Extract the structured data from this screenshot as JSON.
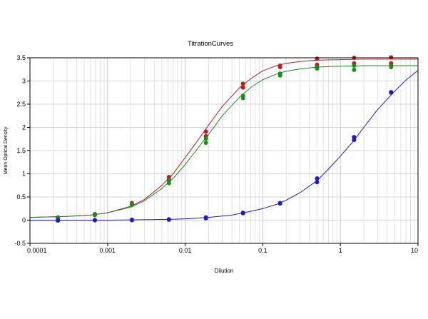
{
  "chart_data": {
    "type": "scatter",
    "title": "TitrationCurves",
    "xlabel": "Dilution",
    "ylabel": "Mean Optical Density",
    "x_scale": "log",
    "xlim": [
      0.0001,
      10
    ],
    "ylim": [
      -0.5,
      3.5
    ],
    "grid": true,
    "x_tick_labels": [
      "0.0001",
      "0.001",
      "0.01",
      "0.1",
      "1",
      "10"
    ],
    "y_tick_labels": [
      "-0.5",
      "0",
      "0.5",
      "1",
      "1.5",
      "2",
      "2.5",
      "3",
      "3.5"
    ],
    "series": [
      {
        "color": "#b22222",
        "points": [
          {
            "x": 0.000229,
            "y": 0.06
          },
          {
            "x": 0.000229,
            "y": 0.04
          },
          {
            "x": 0.000686,
            "y": 0.13
          },
          {
            "x": 0.000686,
            "y": 0.11
          },
          {
            "x": 0.00206,
            "y": 0.37
          },
          {
            "x": 0.00206,
            "y": 0.34
          },
          {
            "x": 0.00617,
            "y": 0.93
          },
          {
            "x": 0.00617,
            "y": 0.88
          },
          {
            "x": 0.0185,
            "y": 1.91
          },
          {
            "x": 0.0185,
            "y": 1.81
          },
          {
            "x": 0.0556,
            "y": 2.94
          },
          {
            "x": 0.0556,
            "y": 2.86
          },
          {
            "x": 0.167,
            "y": 3.33
          },
          {
            "x": 0.167,
            "y": 3.3
          },
          {
            "x": 0.5,
            "y": 3.48
          },
          {
            "x": 0.5,
            "y": 3.35
          },
          {
            "x": 1.5,
            "y": 3.5
          },
          {
            "x": 1.5,
            "y": 3.38
          },
          {
            "x": 4.5,
            "y": 3.51
          },
          {
            "x": 4.5,
            "y": 3.38
          }
        ],
        "curve": [
          {
            "x": 0.0001,
            "y": 0.06
          },
          {
            "x": 0.0003,
            "y": 0.08
          },
          {
            "x": 0.0006,
            "y": 0.11
          },
          {
            "x": 0.001,
            "y": 0.16
          },
          {
            "x": 0.002,
            "y": 0.3
          },
          {
            "x": 0.003,
            "y": 0.45
          },
          {
            "x": 0.005,
            "y": 0.75
          },
          {
            "x": 0.007,
            "y": 1.0
          },
          {
            "x": 0.01,
            "y": 1.35
          },
          {
            "x": 0.015,
            "y": 1.75
          },
          {
            "x": 0.02,
            "y": 2.05
          },
          {
            "x": 0.03,
            "y": 2.45
          },
          {
            "x": 0.05,
            "y": 2.85
          },
          {
            "x": 0.07,
            "y": 3.05
          },
          {
            "x": 0.1,
            "y": 3.22
          },
          {
            "x": 0.15,
            "y": 3.33
          },
          {
            "x": 0.2,
            "y": 3.38
          },
          {
            "x": 0.3,
            "y": 3.42
          },
          {
            "x": 0.5,
            "y": 3.45
          },
          {
            "x": 1,
            "y": 3.46
          },
          {
            "x": 2,
            "y": 3.47
          },
          {
            "x": 5,
            "y": 3.47
          },
          {
            "x": 10,
            "y": 3.47
          }
        ]
      },
      {
        "color": "#1e8a1e",
        "points": [
          {
            "x": 0.000229,
            "y": 0.06
          },
          {
            "x": 0.000229,
            "y": 0.04
          },
          {
            "x": 0.000686,
            "y": 0.12
          },
          {
            "x": 0.000686,
            "y": 0.11
          },
          {
            "x": 0.00206,
            "y": 0.35
          },
          {
            "x": 0.00206,
            "y": 0.33
          },
          {
            "x": 0.00617,
            "y": 0.85
          },
          {
            "x": 0.00617,
            "y": 0.8
          },
          {
            "x": 0.0185,
            "y": 1.76
          },
          {
            "x": 0.0185,
            "y": 1.67
          },
          {
            "x": 0.0556,
            "y": 2.68
          },
          {
            "x": 0.0556,
            "y": 2.63
          },
          {
            "x": 0.167,
            "y": 3.16
          },
          {
            "x": 0.167,
            "y": 3.12
          },
          {
            "x": 0.5,
            "y": 3.3
          },
          {
            "x": 0.5,
            "y": 3.27
          },
          {
            "x": 1.5,
            "y": 3.33
          },
          {
            "x": 1.5,
            "y": 3.24
          },
          {
            "x": 4.5,
            "y": 3.33
          },
          {
            "x": 4.5,
            "y": 3.3
          }
        ],
        "curve": [
          {
            "x": 0.0001,
            "y": 0.06
          },
          {
            "x": 0.0003,
            "y": 0.08
          },
          {
            "x": 0.0006,
            "y": 0.11
          },
          {
            "x": 0.001,
            "y": 0.16
          },
          {
            "x": 0.002,
            "y": 0.28
          },
          {
            "x": 0.003,
            "y": 0.42
          },
          {
            "x": 0.005,
            "y": 0.68
          },
          {
            "x": 0.007,
            "y": 0.9
          },
          {
            "x": 0.01,
            "y": 1.2
          },
          {
            "x": 0.015,
            "y": 1.58
          },
          {
            "x": 0.02,
            "y": 1.85
          },
          {
            "x": 0.03,
            "y": 2.25
          },
          {
            "x": 0.05,
            "y": 2.65
          },
          {
            "x": 0.07,
            "y": 2.86
          },
          {
            "x": 0.1,
            "y": 3.03
          },
          {
            "x": 0.15,
            "y": 3.15
          },
          {
            "x": 0.2,
            "y": 3.21
          },
          {
            "x": 0.3,
            "y": 3.26
          },
          {
            "x": 0.5,
            "y": 3.3
          },
          {
            "x": 1,
            "y": 3.32
          },
          {
            "x": 2,
            "y": 3.33
          },
          {
            "x": 5,
            "y": 3.33
          },
          {
            "x": 10,
            "y": 3.33
          }
        ]
      },
      {
        "color": "#1a1acc",
        "points": [
          {
            "x": 0.000229,
            "y": 0.0
          },
          {
            "x": 0.000229,
            "y": -0.01
          },
          {
            "x": 0.000686,
            "y": 0.0
          },
          {
            "x": 0.000686,
            "y": 0.0
          },
          {
            "x": 0.00206,
            "y": 0.01
          },
          {
            "x": 0.00206,
            "y": 0.0
          },
          {
            "x": 0.00617,
            "y": 0.02
          },
          {
            "x": 0.00617,
            "y": 0.01
          },
          {
            "x": 0.0185,
            "y": 0.06
          },
          {
            "x": 0.0185,
            "y": 0.04
          },
          {
            "x": 0.0556,
            "y": 0.16
          },
          {
            "x": 0.0556,
            "y": 0.15
          },
          {
            "x": 0.167,
            "y": 0.37
          },
          {
            "x": 0.167,
            "y": 0.36
          },
          {
            "x": 0.5,
            "y": 0.9
          },
          {
            "x": 0.5,
            "y": 0.82
          },
          {
            "x": 1.5,
            "y": 1.79
          },
          {
            "x": 1.5,
            "y": 1.73
          },
          {
            "x": 4.5,
            "y": 2.76
          },
          {
            "x": 4.5,
            "y": 2.75
          }
        ],
        "curve": [
          {
            "x": 0.0001,
            "y": 0.0
          },
          {
            "x": 0.001,
            "y": 0.0
          },
          {
            "x": 0.003,
            "y": 0.01
          },
          {
            "x": 0.007,
            "y": 0.02
          },
          {
            "x": 0.01,
            "y": 0.03
          },
          {
            "x": 0.02,
            "y": 0.06
          },
          {
            "x": 0.04,
            "y": 0.11
          },
          {
            "x": 0.07,
            "y": 0.19
          },
          {
            "x": 0.1,
            "y": 0.25
          },
          {
            "x": 0.15,
            "y": 0.34
          },
          {
            "x": 0.2,
            "y": 0.43
          },
          {
            "x": 0.3,
            "y": 0.59
          },
          {
            "x": 0.5,
            "y": 0.85
          },
          {
            "x": 0.7,
            "y": 1.1
          },
          {
            "x": 1,
            "y": 1.38
          },
          {
            "x": 1.5,
            "y": 1.72
          },
          {
            "x": 2,
            "y": 2.0
          },
          {
            "x": 3,
            "y": 2.38
          },
          {
            "x": 5,
            "y": 2.78
          },
          {
            "x": 7,
            "y": 3.02
          },
          {
            "x": 10,
            "y": 3.23
          }
        ]
      }
    ]
  }
}
